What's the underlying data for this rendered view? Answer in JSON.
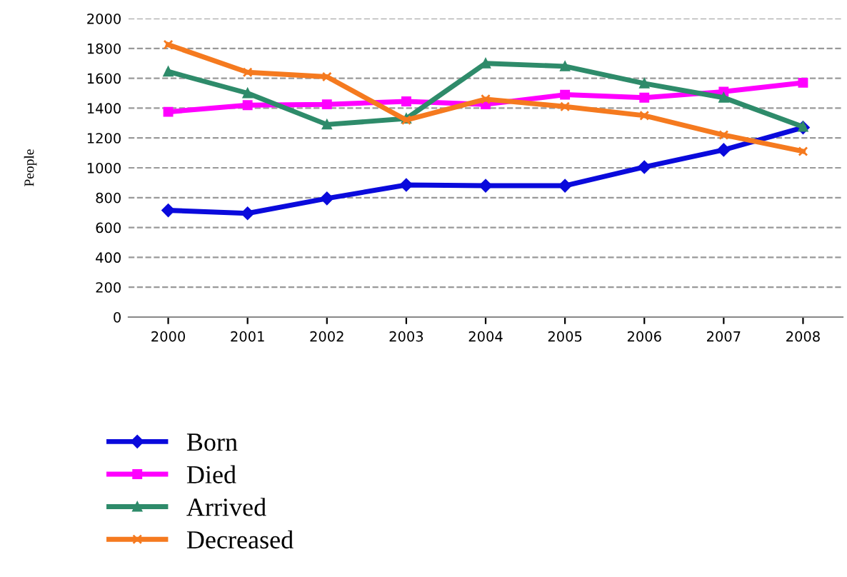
{
  "chart_data": {
    "type": "line",
    "ylabel": "People",
    "categories": [
      "2000",
      "2001",
      "2002",
      "2003",
      "2004",
      "2005",
      "2006",
      "2007",
      "2008"
    ],
    "series": [
      {
        "name": "Born",
        "color": "#0a0adc",
        "marker": "diamond",
        "values": [
          715,
          695,
          795,
          885,
          880,
          880,
          1005,
          1120,
          1270
        ]
      },
      {
        "name": "Died",
        "color": "#ff00ff",
        "marker": "square",
        "values": [
          1375,
          1420,
          1425,
          1445,
          1425,
          1490,
          1470,
          1510,
          1570
        ]
      },
      {
        "name": "Arrived",
        "color": "#2e8b6a",
        "marker": "triangle",
        "values": [
          1645,
          1500,
          1290,
          1330,
          1700,
          1680,
          1565,
          1470,
          1275
        ]
      },
      {
        "name": "Decreased",
        "color": "#f57a1f",
        "marker": "cross",
        "values": [
          1825,
          1640,
          1610,
          1320,
          1460,
          1410,
          1350,
          1220,
          1110
        ]
      }
    ],
    "ylim": [
      0,
      2000
    ],
    "yticks": [
      0,
      200,
      400,
      600,
      800,
      1000,
      1200,
      1400,
      1600,
      1800,
      2000
    ],
    "grid": "y",
    "legend": "bottom left",
    "line_style": "solid"
  }
}
